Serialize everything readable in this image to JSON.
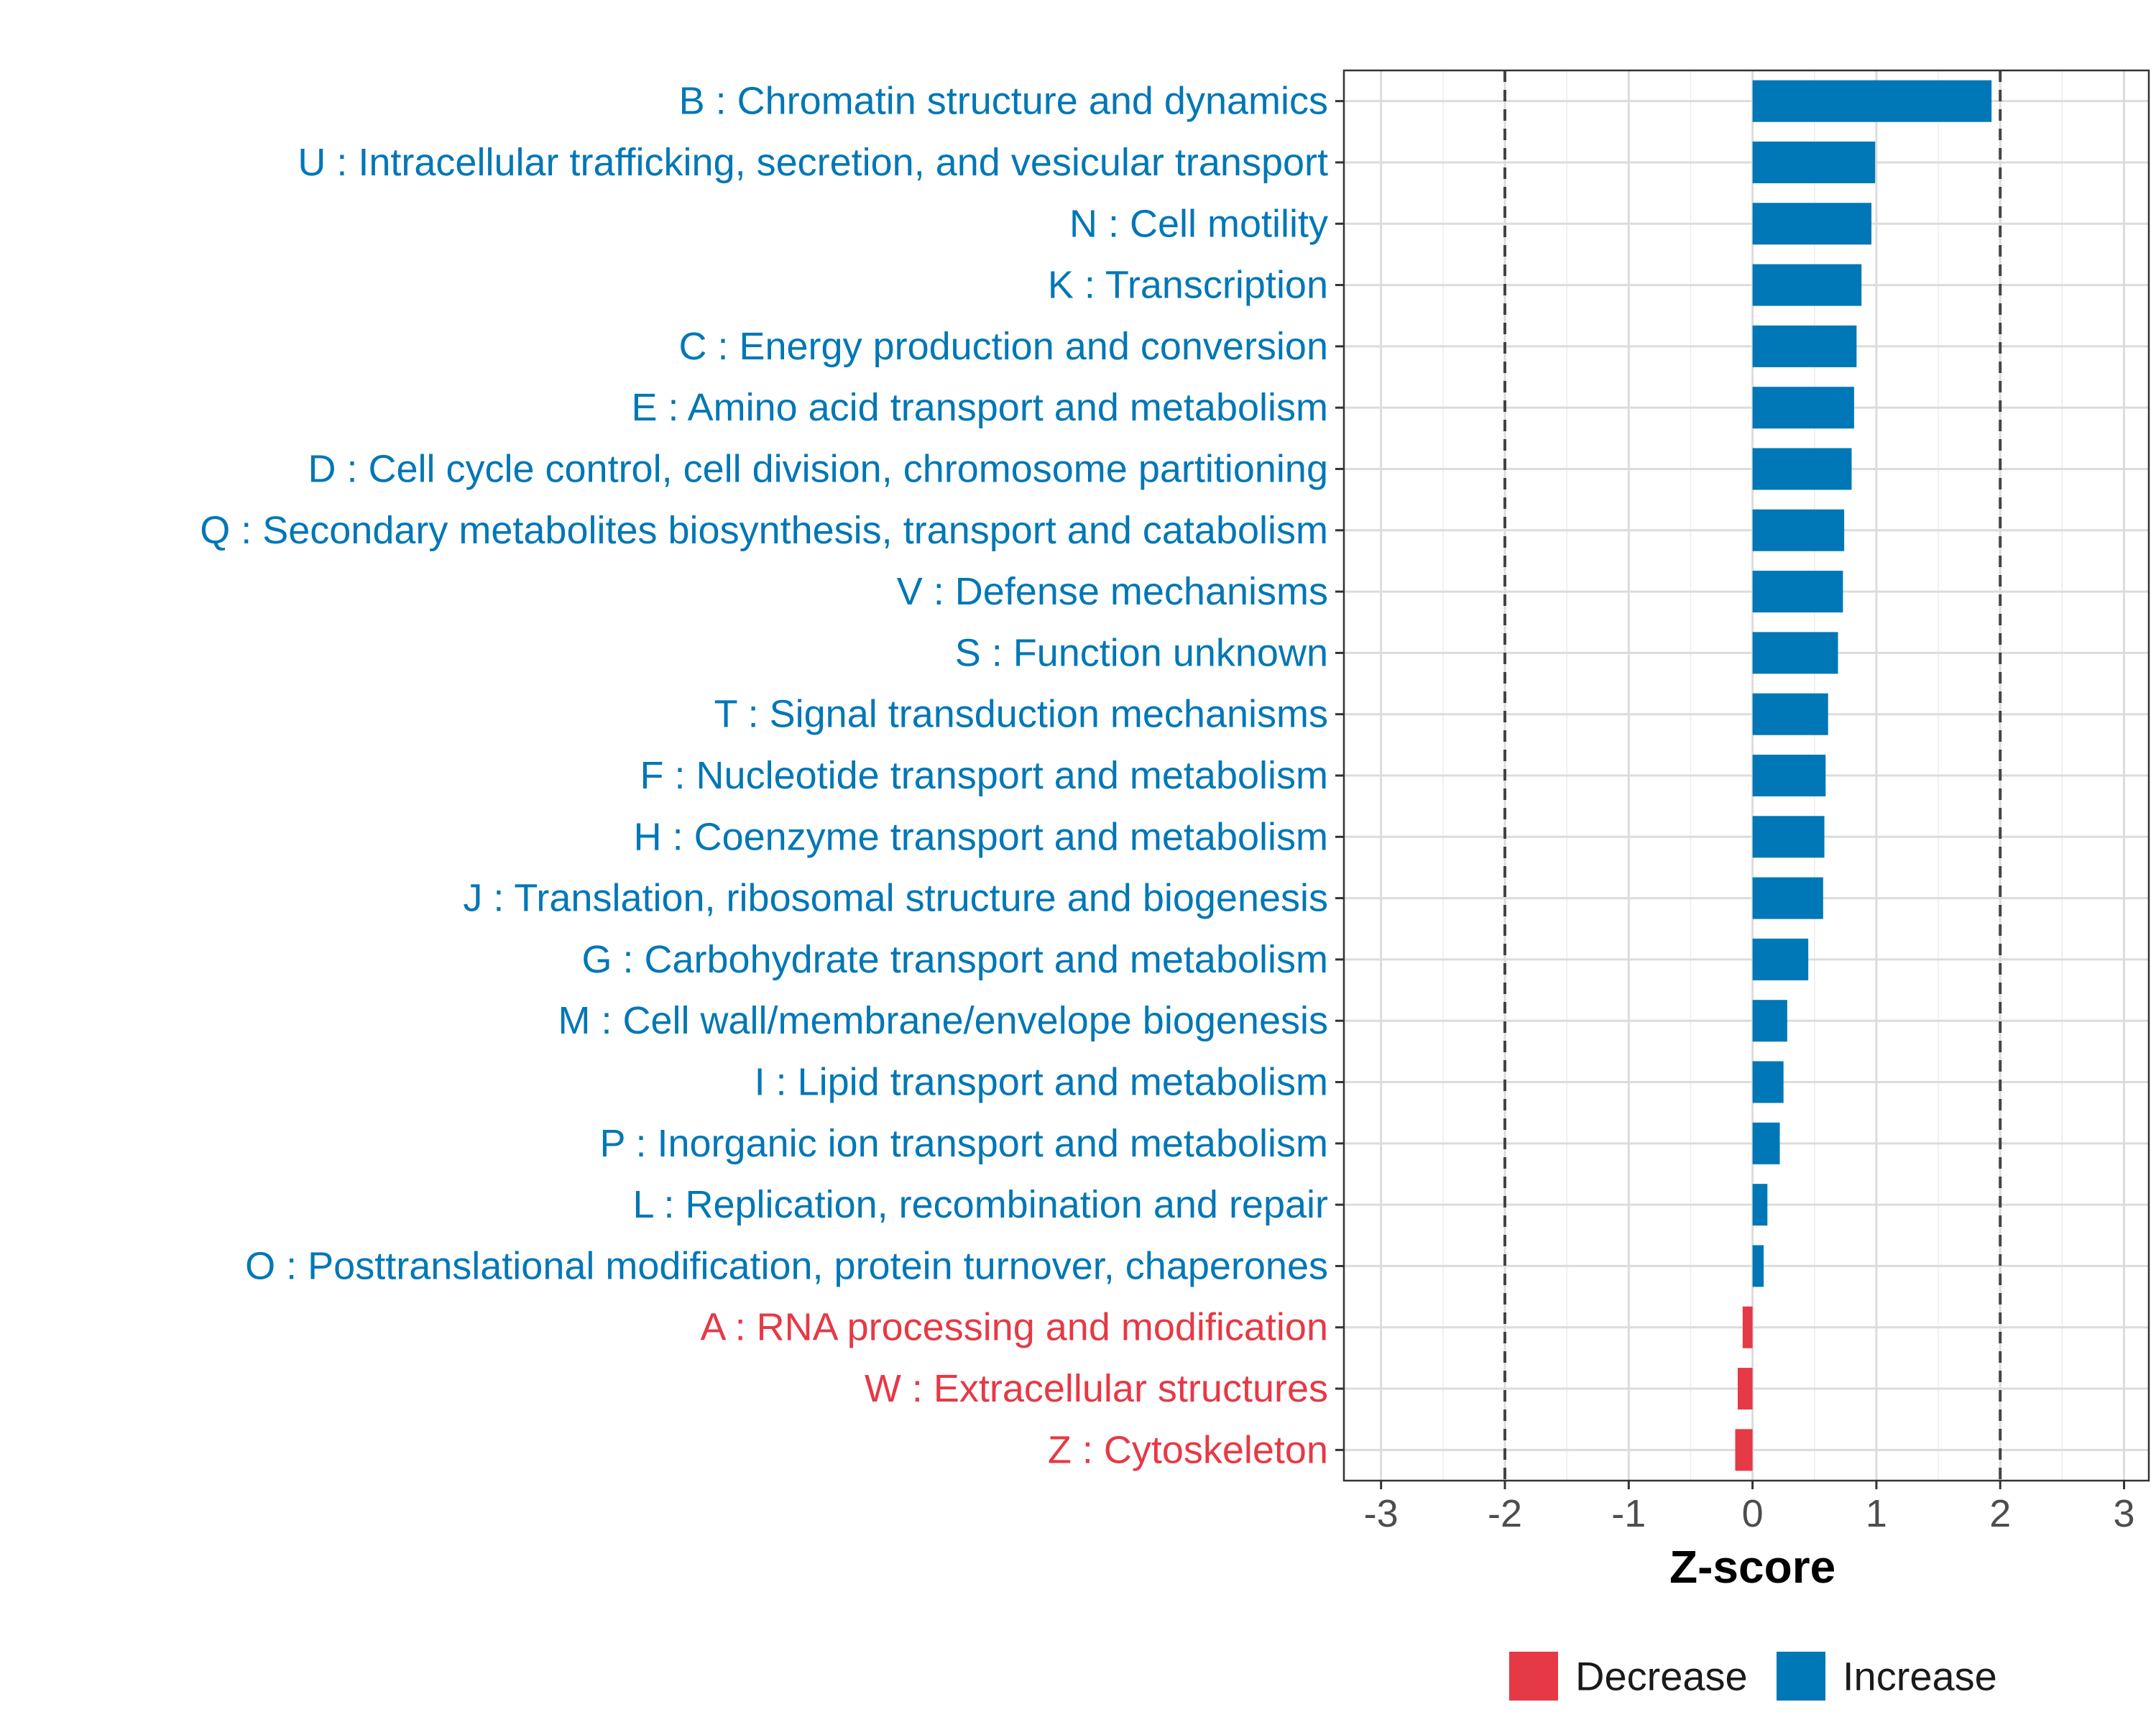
{
  "chart_data": {
    "type": "bar",
    "orientation": "horizontal",
    "title": "",
    "xlabel": "Z-score",
    "ylabel": "",
    "xlim": [
      -3.3,
      3.2
    ],
    "xticks": [
      -3,
      -2,
      -1,
      0,
      1,
      2,
      3
    ],
    "threshold_lines": [
      -2,
      2
    ],
    "grid": true,
    "colors": {
      "Decrease": "#e63946",
      "Increase": "#0077b6"
    },
    "legend": {
      "position": "bottom",
      "entries": [
        {
          "label": "Decrease",
          "color": "#e63946"
        },
        {
          "label": "Increase",
          "color": "#0077b6"
        }
      ]
    },
    "categories": [
      {
        "label": "B : Chromatin structure and dynamics",
        "value": 1.93,
        "direction": "Increase"
      },
      {
        "label": "U : Intracellular trafficking, secretion, and vesicular transport",
        "value": 0.99,
        "direction": "Increase"
      },
      {
        "label": "N : Cell motility",
        "value": 0.96,
        "direction": "Increase"
      },
      {
        "label": "K : Transcription",
        "value": 0.88,
        "direction": "Increase"
      },
      {
        "label": "C : Energy production and conversion",
        "value": 0.84,
        "direction": "Increase"
      },
      {
        "label": "E : Amino acid transport and metabolism",
        "value": 0.82,
        "direction": "Increase"
      },
      {
        "label": "D : Cell cycle control, cell division, chromosome partitioning",
        "value": 0.8,
        "direction": "Increase"
      },
      {
        "label": "Q : Secondary metabolites biosynthesis, transport and catabolism",
        "value": 0.74,
        "direction": "Increase"
      },
      {
        "label": "V : Defense mechanisms",
        "value": 0.73,
        "direction": "Increase"
      },
      {
        "label": "S : Function unknown",
        "value": 0.69,
        "direction": "Increase"
      },
      {
        "label": "T : Signal transduction mechanisms",
        "value": 0.61,
        "direction": "Increase"
      },
      {
        "label": "F : Nucleotide transport and metabolism",
        "value": 0.59,
        "direction": "Increase"
      },
      {
        "label": "H : Coenzyme transport and metabolism",
        "value": 0.58,
        "direction": "Increase"
      },
      {
        "label": "J : Translation, ribosomal structure and biogenesis",
        "value": 0.57,
        "direction": "Increase"
      },
      {
        "label": "G : Carbohydrate transport and metabolism",
        "value": 0.45,
        "direction": "Increase"
      },
      {
        "label": "M : Cell wall/membrane/envelope biogenesis",
        "value": 0.28,
        "direction": "Increase"
      },
      {
        "label": "I : Lipid transport and metabolism",
        "value": 0.25,
        "direction": "Increase"
      },
      {
        "label": "P : Inorganic ion transport and metabolism",
        "value": 0.22,
        "direction": "Increase"
      },
      {
        "label": "L : Replication, recombination and repair",
        "value": 0.12,
        "direction": "Increase"
      },
      {
        "label": "O : Posttranslational modification, protein turnover, chaperones",
        "value": 0.09,
        "direction": "Increase"
      },
      {
        "label": "A : RNA processing and modification",
        "value": -0.08,
        "direction": "Decrease"
      },
      {
        "label": "W : Extracellular structures",
        "value": -0.12,
        "direction": "Decrease"
      },
      {
        "label": "Z : Cytoskeleton",
        "value": -0.14,
        "direction": "Decrease"
      }
    ]
  }
}
